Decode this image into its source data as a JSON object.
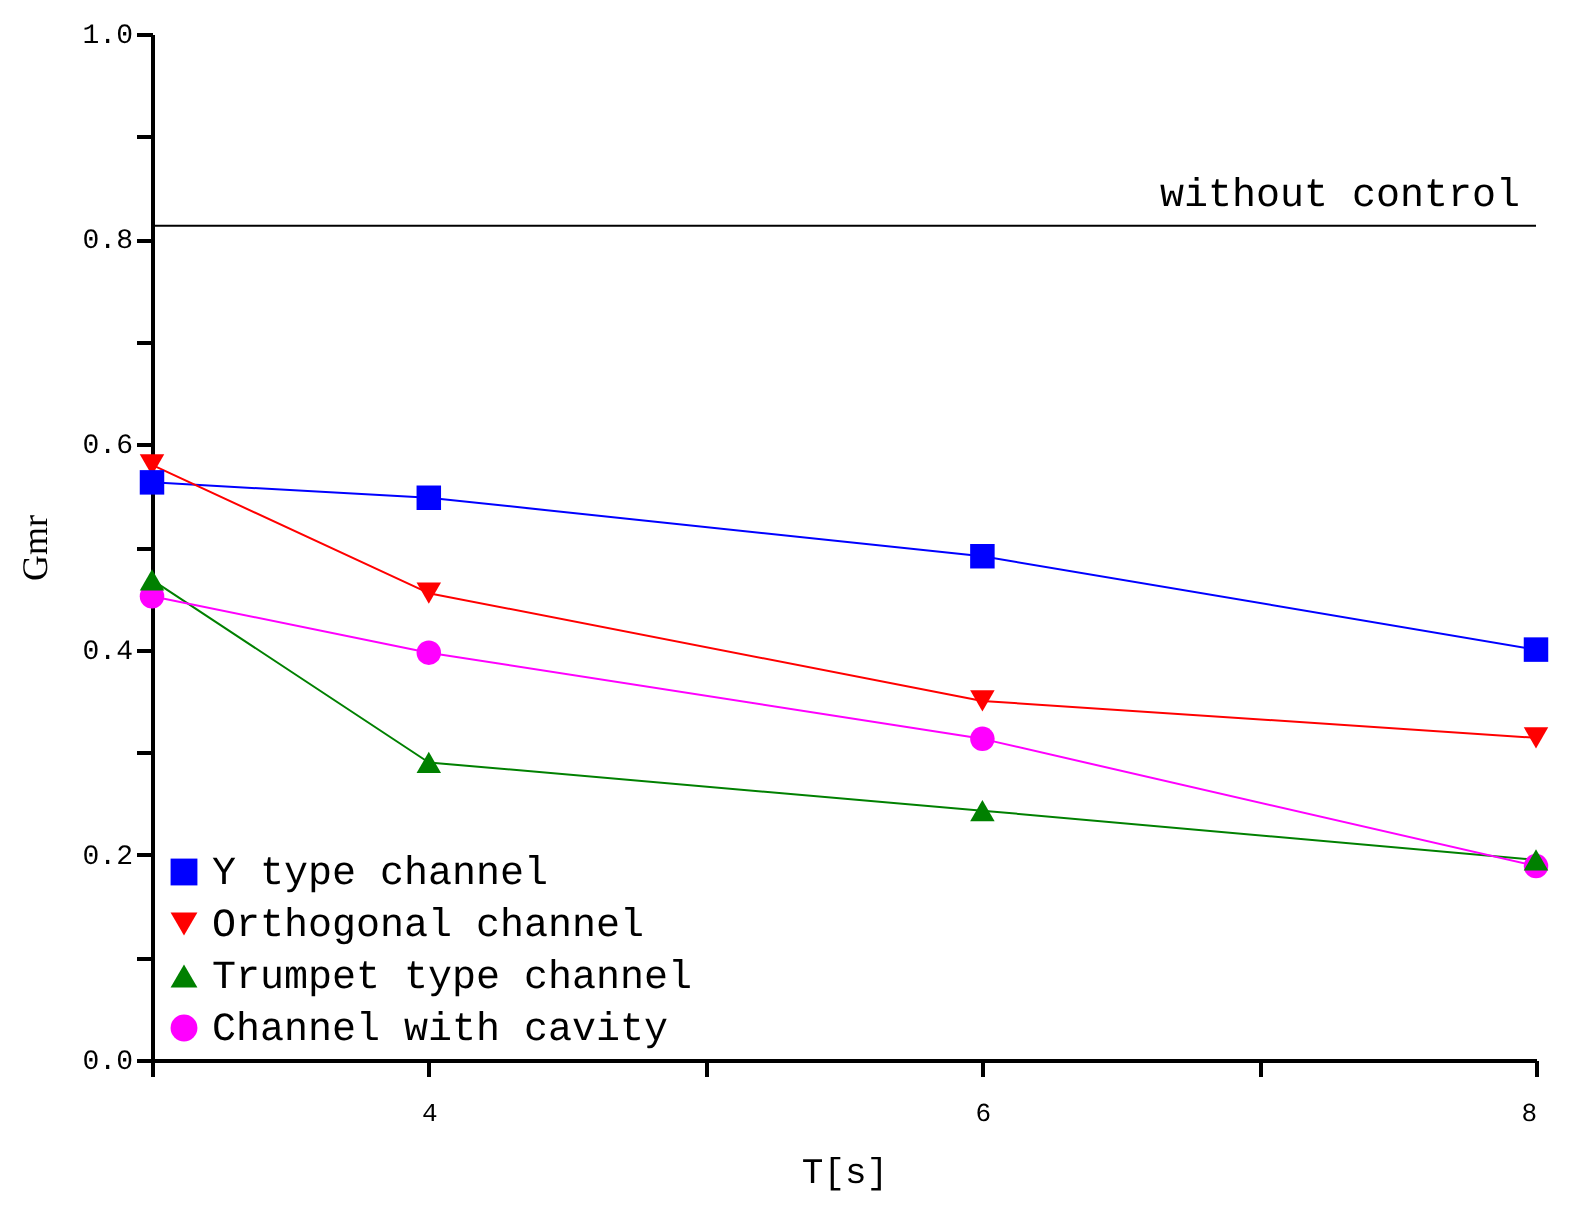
{
  "chart_data": {
    "type": "line",
    "xlabel": "T[s]",
    "ylabel": "Gmr",
    "x": [
      3,
      4,
      6,
      8
    ],
    "series": [
      {
        "name": "Y type channel",
        "color": "#0000ff",
        "marker": "square",
        "values": [
          0.563,
          0.548,
          0.491,
          0.4
        ]
      },
      {
        "name": "Orthogonal channel",
        "color": "#ff0000",
        "marker": "triangle-down",
        "values": [
          0.58,
          0.455,
          0.35,
          0.314
        ]
      },
      {
        "name": "Trumpet type channel",
        "color": "#008000",
        "marker": "triangle",
        "values": [
          0.468,
          0.29,
          0.243,
          0.195
        ]
      },
      {
        "name": "Channel with cavity",
        "color": "#ff00ff",
        "marker": "circle",
        "values": [
          0.452,
          0.397,
          0.313,
          0.189
        ]
      }
    ],
    "xlim": [
      3,
      8
    ],
    "xticks": [
      {
        "value": 3,
        "label": null
      },
      4,
      {
        "value": 5,
        "label": null
      },
      6,
      {
        "value": 7,
        "label": null
      },
      8
    ],
    "ylim": [
      0,
      1.0
    ],
    "yticks": [
      {
        "value": 0,
        "label": "0.0"
      },
      {
        "value": 0.1,
        "label": null
      },
      {
        "value": 0.2,
        "label": "0.2"
      },
      {
        "value": 0.3,
        "label": null
      },
      {
        "value": 0.4,
        "label": "0.4"
      },
      {
        "value": 0.5,
        "label": null
      },
      {
        "value": 0.6,
        "label": "0.6"
      },
      {
        "value": 0.7,
        "label": null
      },
      {
        "value": 0.8,
        "label": "0.8"
      },
      {
        "value": 0.9,
        "label": null
      },
      {
        "value": 1.0,
        "label": "1.0"
      }
    ],
    "ref_lines": [
      {
        "axis": "y",
        "value": 0.813,
        "label": "without control",
        "color": "#000000"
      }
    ],
    "legend": "bottom left",
    "grid": false
  }
}
